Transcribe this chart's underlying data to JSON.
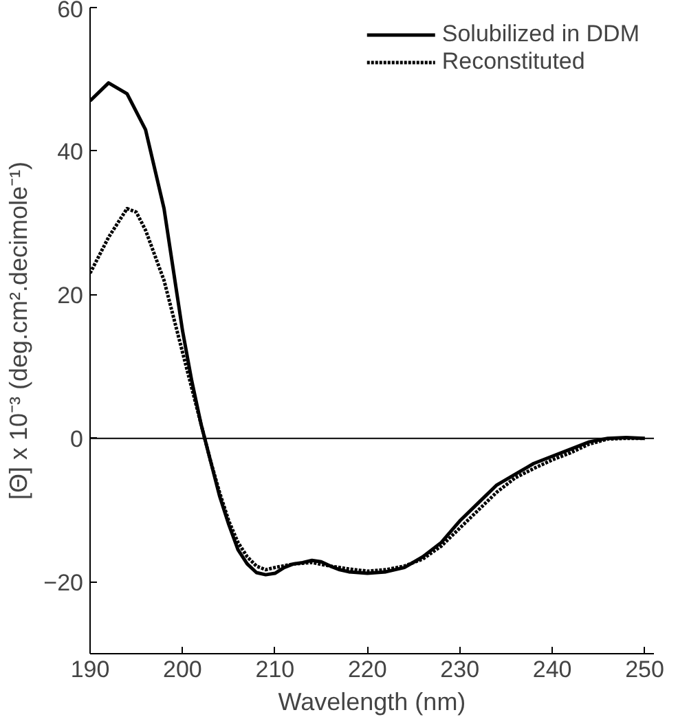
{
  "chart_data": {
    "type": "line",
    "xlabel": "Wavelength (nm)",
    "ylabel": "[Θ] x 10⁻³ (deg.cm².decimole⁻¹)",
    "xlim": [
      190,
      251
    ],
    "ylim": [
      -30,
      60
    ],
    "xticks": [
      190,
      200,
      210,
      220,
      230,
      240,
      250
    ],
    "yticks": [
      -20,
      0,
      20,
      40,
      60
    ],
    "grid": false,
    "legend": "top right",
    "ref_lines": [
      {
        "axis": "y",
        "value": 0,
        "color": "#000000"
      }
    ],
    "series": [
      {
        "name": "Solubilized in DDM",
        "color": "#000000",
        "line_style": "solid",
        "x": [
          190,
          192,
          194,
          196,
          198,
          200,
          201,
          202,
          203,
          204,
          205,
          206,
          207,
          208,
          209,
          210,
          211,
          212,
          213,
          214,
          215,
          216,
          217,
          218,
          220,
          222,
          224,
          226,
          228,
          230,
          232,
          234,
          236,
          238,
          240,
          242,
          244,
          246,
          248,
          250
        ],
        "values": [
          47,
          49.5,
          48,
          43,
          32,
          15,
          8,
          2,
          -3,
          -8,
          -12,
          -15.5,
          -17.5,
          -18.7,
          -19,
          -18.8,
          -18,
          -17.5,
          -17.3,
          -17,
          -17.2,
          -17.8,
          -18.3,
          -18.6,
          -18.8,
          -18.6,
          -18,
          -16.5,
          -14.5,
          -11.5,
          -9,
          -6.5,
          -5,
          -3.5,
          -2.5,
          -1.5,
          -0.5,
          0,
          0.1,
          0
        ]
      },
      {
        "name": "Reconstituted",
        "color": "#000000",
        "line_style": "dotted",
        "x": [
          190,
          192,
          194,
          195,
          196,
          198,
          200,
          201,
          202,
          203,
          204,
          205,
          206,
          207,
          208,
          209,
          210,
          212,
          214,
          216,
          218,
          220,
          222,
          224,
          226,
          228,
          230,
          232,
          234,
          236,
          238,
          240,
          242,
          244,
          246,
          248,
          250
        ],
        "values": [
          23,
          28,
          32,
          31.5,
          29,
          22,
          12,
          7,
          2,
          -3,
          -7.5,
          -11.5,
          -14.5,
          -16.5,
          -17.8,
          -18.3,
          -18,
          -17.5,
          -17.3,
          -17.8,
          -18.2,
          -18.5,
          -18.3,
          -17.8,
          -16.8,
          -15,
          -12.5,
          -10,
          -7.5,
          -5.5,
          -4.2,
          -3,
          -2,
          -0.8,
          -0.1,
          0,
          0
        ]
      }
    ]
  }
}
